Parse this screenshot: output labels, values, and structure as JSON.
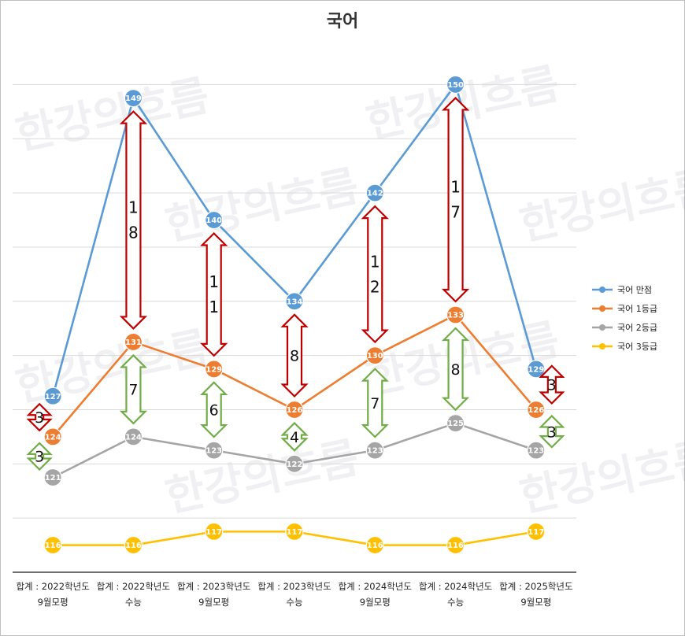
{
  "chart_data": {
    "type": "line",
    "title": "국어",
    "categories": [
      [
        "합계 : 2022학년도",
        "9월모평"
      ],
      [
        "합계 : 2022학년도",
        "수능"
      ],
      [
        "합계 : 2023학년도",
        "9월모평"
      ],
      [
        "합계 : 2023학년도",
        "수능"
      ],
      [
        "합계 : 2024학년도",
        "9월모평"
      ],
      [
        "합계 : 2024학년도",
        "수능"
      ],
      [
        "합계 : 2025학년도",
        "9월모평"
      ]
    ],
    "ylim": [
      114,
      152
    ],
    "grid": true,
    "legend_position": "right",
    "series": [
      {
        "name": "국어 만점",
        "color": "#5b9bd5",
        "values": [
          127,
          149,
          140,
          134,
          142,
          150,
          129
        ]
      },
      {
        "name": "국어 1등급",
        "color": "#ed7d31",
        "values": [
          124,
          131,
          129,
          126,
          130,
          133,
          126
        ]
      },
      {
        "name": "국어 2등급",
        "color": "#a5a5a5",
        "values": [
          121,
          124,
          123,
          122,
          123,
          125,
          123
        ]
      },
      {
        "name": "국어 3등급",
        "color": "#ffc000",
        "values": [
          116,
          116,
          117,
          117,
          116,
          116,
          117
        ]
      }
    ],
    "annotations": {
      "gap_top": {
        "color": "#c00000",
        "labels": [
          "3",
          "18",
          "11",
          "8",
          "12",
          "17",
          "3"
        ]
      },
      "gap_second": {
        "color": "#70ad47",
        "labels": [
          "3",
          "7",
          "6",
          "4",
          "7",
          "8",
          "3"
        ]
      }
    },
    "watermark": "한강의흐름"
  }
}
